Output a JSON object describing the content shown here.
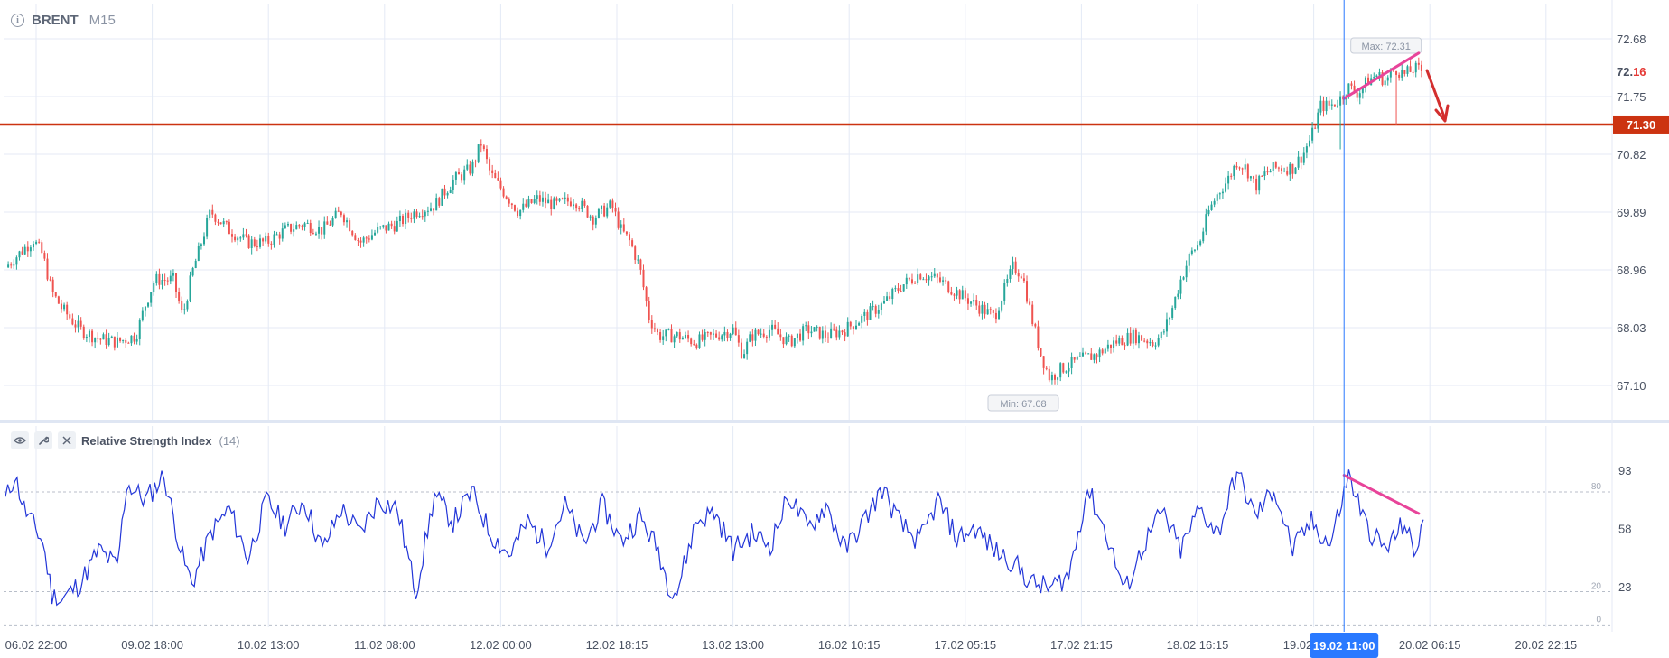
{
  "header": {
    "symbol": "BRENT",
    "timeframe": "M15"
  },
  "indicator": {
    "name": "Relative Strength Index",
    "param": "(14)"
  },
  "colors": {
    "up": "#26a69a",
    "down": "#ef5350",
    "rsi": "#2336d8",
    "level": "#cc3311",
    "crosshair": "#2979ff",
    "trend": "#e8449a"
  },
  "price_markers": {
    "max": "Max: 72.31",
    "min": "Min: 67.08",
    "current": "72.16",
    "level": "71.30"
  },
  "crosshair_label": "19.02 11:00",
  "chart_data": [
    {
      "type": "candlestick",
      "title": "BRENT M15",
      "ylim": [
        66.7,
        73.0
      ],
      "yticks": [
        72.68,
        71.75,
        70.82,
        69.89,
        68.96,
        68.03,
        67.1
      ],
      "xlabels": [
        "06.02 22:00",
        "09.02 18:00",
        "10.02 13:00",
        "11.02 08:00",
        "12.02 00:00",
        "12.02 18:15",
        "13.02 13:00",
        "16.02 10:15",
        "17.02 05:15",
        "17.02 21:15",
        "18.02 16:15",
        "19.02 11:00",
        "20.02 06:15",
        "20.02 22:15"
      ],
      "horizontal_line": 71.3,
      "current_price": 72.16,
      "max": 72.31,
      "min": 67.08,
      "close_path": [
        [
          0,
          69.0
        ],
        [
          3,
          69.45
        ],
        [
          4,
          69.2
        ],
        [
          5,
          68.6
        ],
        [
          6,
          68.35
        ],
        [
          8,
          68.0
        ],
        [
          10,
          67.85
        ],
        [
          12,
          67.8
        ],
        [
          14,
          67.9
        ],
        [
          15,
          68.4
        ],
        [
          16,
          68.8
        ],
        [
          18,
          68.8
        ],
        [
          19,
          68.2
        ],
        [
          20,
          68.9
        ],
        [
          21,
          69.4
        ],
        [
          22,
          69.9
        ],
        [
          24,
          69.6
        ],
        [
          26,
          69.4
        ],
        [
          28,
          69.4
        ],
        [
          30,
          69.6
        ],
        [
          32,
          69.7
        ],
        [
          34,
          69.6
        ],
        [
          36,
          69.9
        ],
        [
          38,
          69.4
        ],
        [
          40,
          69.6
        ],
        [
          42,
          69.7
        ],
        [
          44,
          69.9
        ],
        [
          46,
          70.0
        ],
        [
          48,
          70.4
        ],
        [
          50,
          70.6
        ],
        [
          51,
          71.0
        ],
        [
          52,
          70.5
        ],
        [
          53,
          70.3
        ],
        [
          54,
          70.1
        ],
        [
          55,
          69.9
        ],
        [
          57,
          70.1
        ],
        [
          59,
          70.0
        ],
        [
          61,
          70.1
        ],
        [
          63,
          69.8
        ],
        [
          65,
          70.0
        ],
        [
          66,
          69.6
        ],
        [
          67,
          69.4
        ],
        [
          68,
          69.0
        ],
        [
          69,
          68.2
        ],
        [
          70,
          67.9
        ],
        [
          72,
          67.9
        ],
        [
          74,
          67.8
        ],
        [
          76,
          67.9
        ],
        [
          78,
          68.0
        ],
        [
          79,
          67.6
        ],
        [
          80,
          67.9
        ],
        [
          82,
          68.0
        ],
        [
          84,
          67.8
        ],
        [
          86,
          68.0
        ],
        [
          88,
          67.9
        ],
        [
          90,
          68.0
        ],
        [
          92,
          68.2
        ],
        [
          94,
          68.4
        ],
        [
          96,
          68.7
        ],
        [
          98,
          68.9
        ],
        [
          100,
          68.8
        ],
        [
          102,
          68.6
        ],
        [
          104,
          68.4
        ],
        [
          106,
          68.2
        ],
        [
          107,
          68.6
        ],
        [
          108,
          69.0
        ],
        [
          109,
          68.9
        ],
        [
          110,
          68.2
        ],
        [
          111,
          67.6
        ],
        [
          112,
          67.2
        ],
        [
          113,
          67.35
        ],
        [
          115,
          67.5
        ],
        [
          117,
          67.6
        ],
        [
          119,
          67.8
        ],
        [
          121,
          67.9
        ],
        [
          123,
          67.8
        ],
        [
          124,
          67.9
        ],
        [
          125,
          68.3
        ],
        [
          126,
          68.8
        ],
        [
          127,
          69.2
        ],
        [
          128,
          69.4
        ],
        [
          129,
          69.9
        ],
        [
          130,
          70.2
        ],
        [
          131,
          70.4
        ],
        [
          132,
          70.7
        ],
        [
          133,
          70.6
        ],
        [
          134,
          70.3
        ],
        [
          135,
          70.5
        ],
        [
          136,
          70.6
        ],
        [
          138,
          70.6
        ],
        [
          139,
          70.8
        ],
        [
          140,
          71.1
        ],
        [
          141,
          71.6
        ],
        [
          142,
          71.6
        ],
        [
          143,
          71.7
        ],
        [
          144,
          71.9
        ],
        [
          145,
          71.8
        ],
        [
          146,
          72.0
        ],
        [
          147,
          72.1
        ],
        [
          148,
          72.0
        ],
        [
          149,
          72.2
        ],
        [
          150,
          72.1
        ],
        [
          151,
          72.2
        ],
        [
          152,
          72.16
        ]
      ],
      "wick_spikes": [
        [
          143,
          70.9
        ],
        [
          149,
          71.3
        ]
      ]
    },
    {
      "type": "line",
      "title": "Relative Strength Index (14)",
      "ylim": [
        -5,
        105
      ],
      "yticks": [
        93,
        58,
        23
      ],
      "levels": [
        80,
        20,
        0
      ],
      "series": [
        {
          "values": [
            [
              0,
              75
            ],
            [
              1,
              90
            ],
            [
              2,
              70
            ],
            [
              4,
              50
            ],
            [
              5,
              18
            ],
            [
              6,
              15
            ],
            [
              8,
              25
            ],
            [
              10,
              45
            ],
            [
              12,
              35
            ],
            [
              13,
              85
            ],
            [
              15,
              75
            ],
            [
              17,
              90
            ],
            [
              19,
              40
            ],
            [
              20,
              25
            ],
            [
              22,
              55
            ],
            [
              24,
              70
            ],
            [
              26,
              40
            ],
            [
              28,
              75
            ],
            [
              30,
              60
            ],
            [
              32,
              75
            ],
            [
              34,
              45
            ],
            [
              36,
              70
            ],
            [
              38,
              55
            ],
            [
              40,
              75
            ],
            [
              42,
              70
            ],
            [
              44,
              20
            ],
            [
              46,
              78
            ],
            [
              48,
              62
            ],
            [
              50,
              80
            ],
            [
              52,
              55
            ],
            [
              54,
              42
            ],
            [
              56,
              62
            ],
            [
              58,
              48
            ],
            [
              60,
              72
            ],
            [
              62,
              48
            ],
            [
              64,
              72
            ],
            [
              66,
              50
            ],
            [
              68,
              65
            ],
            [
              70,
              45
            ],
            [
              71,
              25
            ],
            [
              72,
              20
            ],
            [
              74,
              62
            ],
            [
              76,
              68
            ],
            [
              78,
              45
            ],
            [
              80,
              55
            ],
            [
              82,
              48
            ],
            [
              84,
              78
            ],
            [
              86,
              58
            ],
            [
              88,
              72
            ],
            [
              90,
              45
            ],
            [
              92,
              62
            ],
            [
              94,
              82
            ],
            [
              96,
              60
            ],
            [
              98,
              50
            ],
            [
              100,
              75
            ],
            [
              102,
              52
            ],
            [
              104,
              58
            ],
            [
              106,
              45
            ],
            [
              108,
              38
            ],
            [
              110,
              25
            ],
            [
              112,
              22
            ],
            [
              114,
              30
            ],
            [
              116,
              82
            ],
            [
              118,
              55
            ],
            [
              120,
              20
            ],
            [
              122,
              48
            ],
            [
              124,
              68
            ],
            [
              126,
              45
            ],
            [
              128,
              70
            ],
            [
              130,
              55
            ],
            [
              132,
              92
            ],
            [
              134,
              65
            ],
            [
              136,
              82
            ],
            [
              138,
              45
            ],
            [
              140,
              62
            ],
            [
              142,
              48
            ],
            [
              144,
              90
            ],
            [
              146,
              58
            ],
            [
              148,
              45
            ],
            [
              150,
              62
            ],
            [
              151,
              42
            ],
            [
              152,
              63
            ]
          ]
        }
      ]
    }
  ]
}
